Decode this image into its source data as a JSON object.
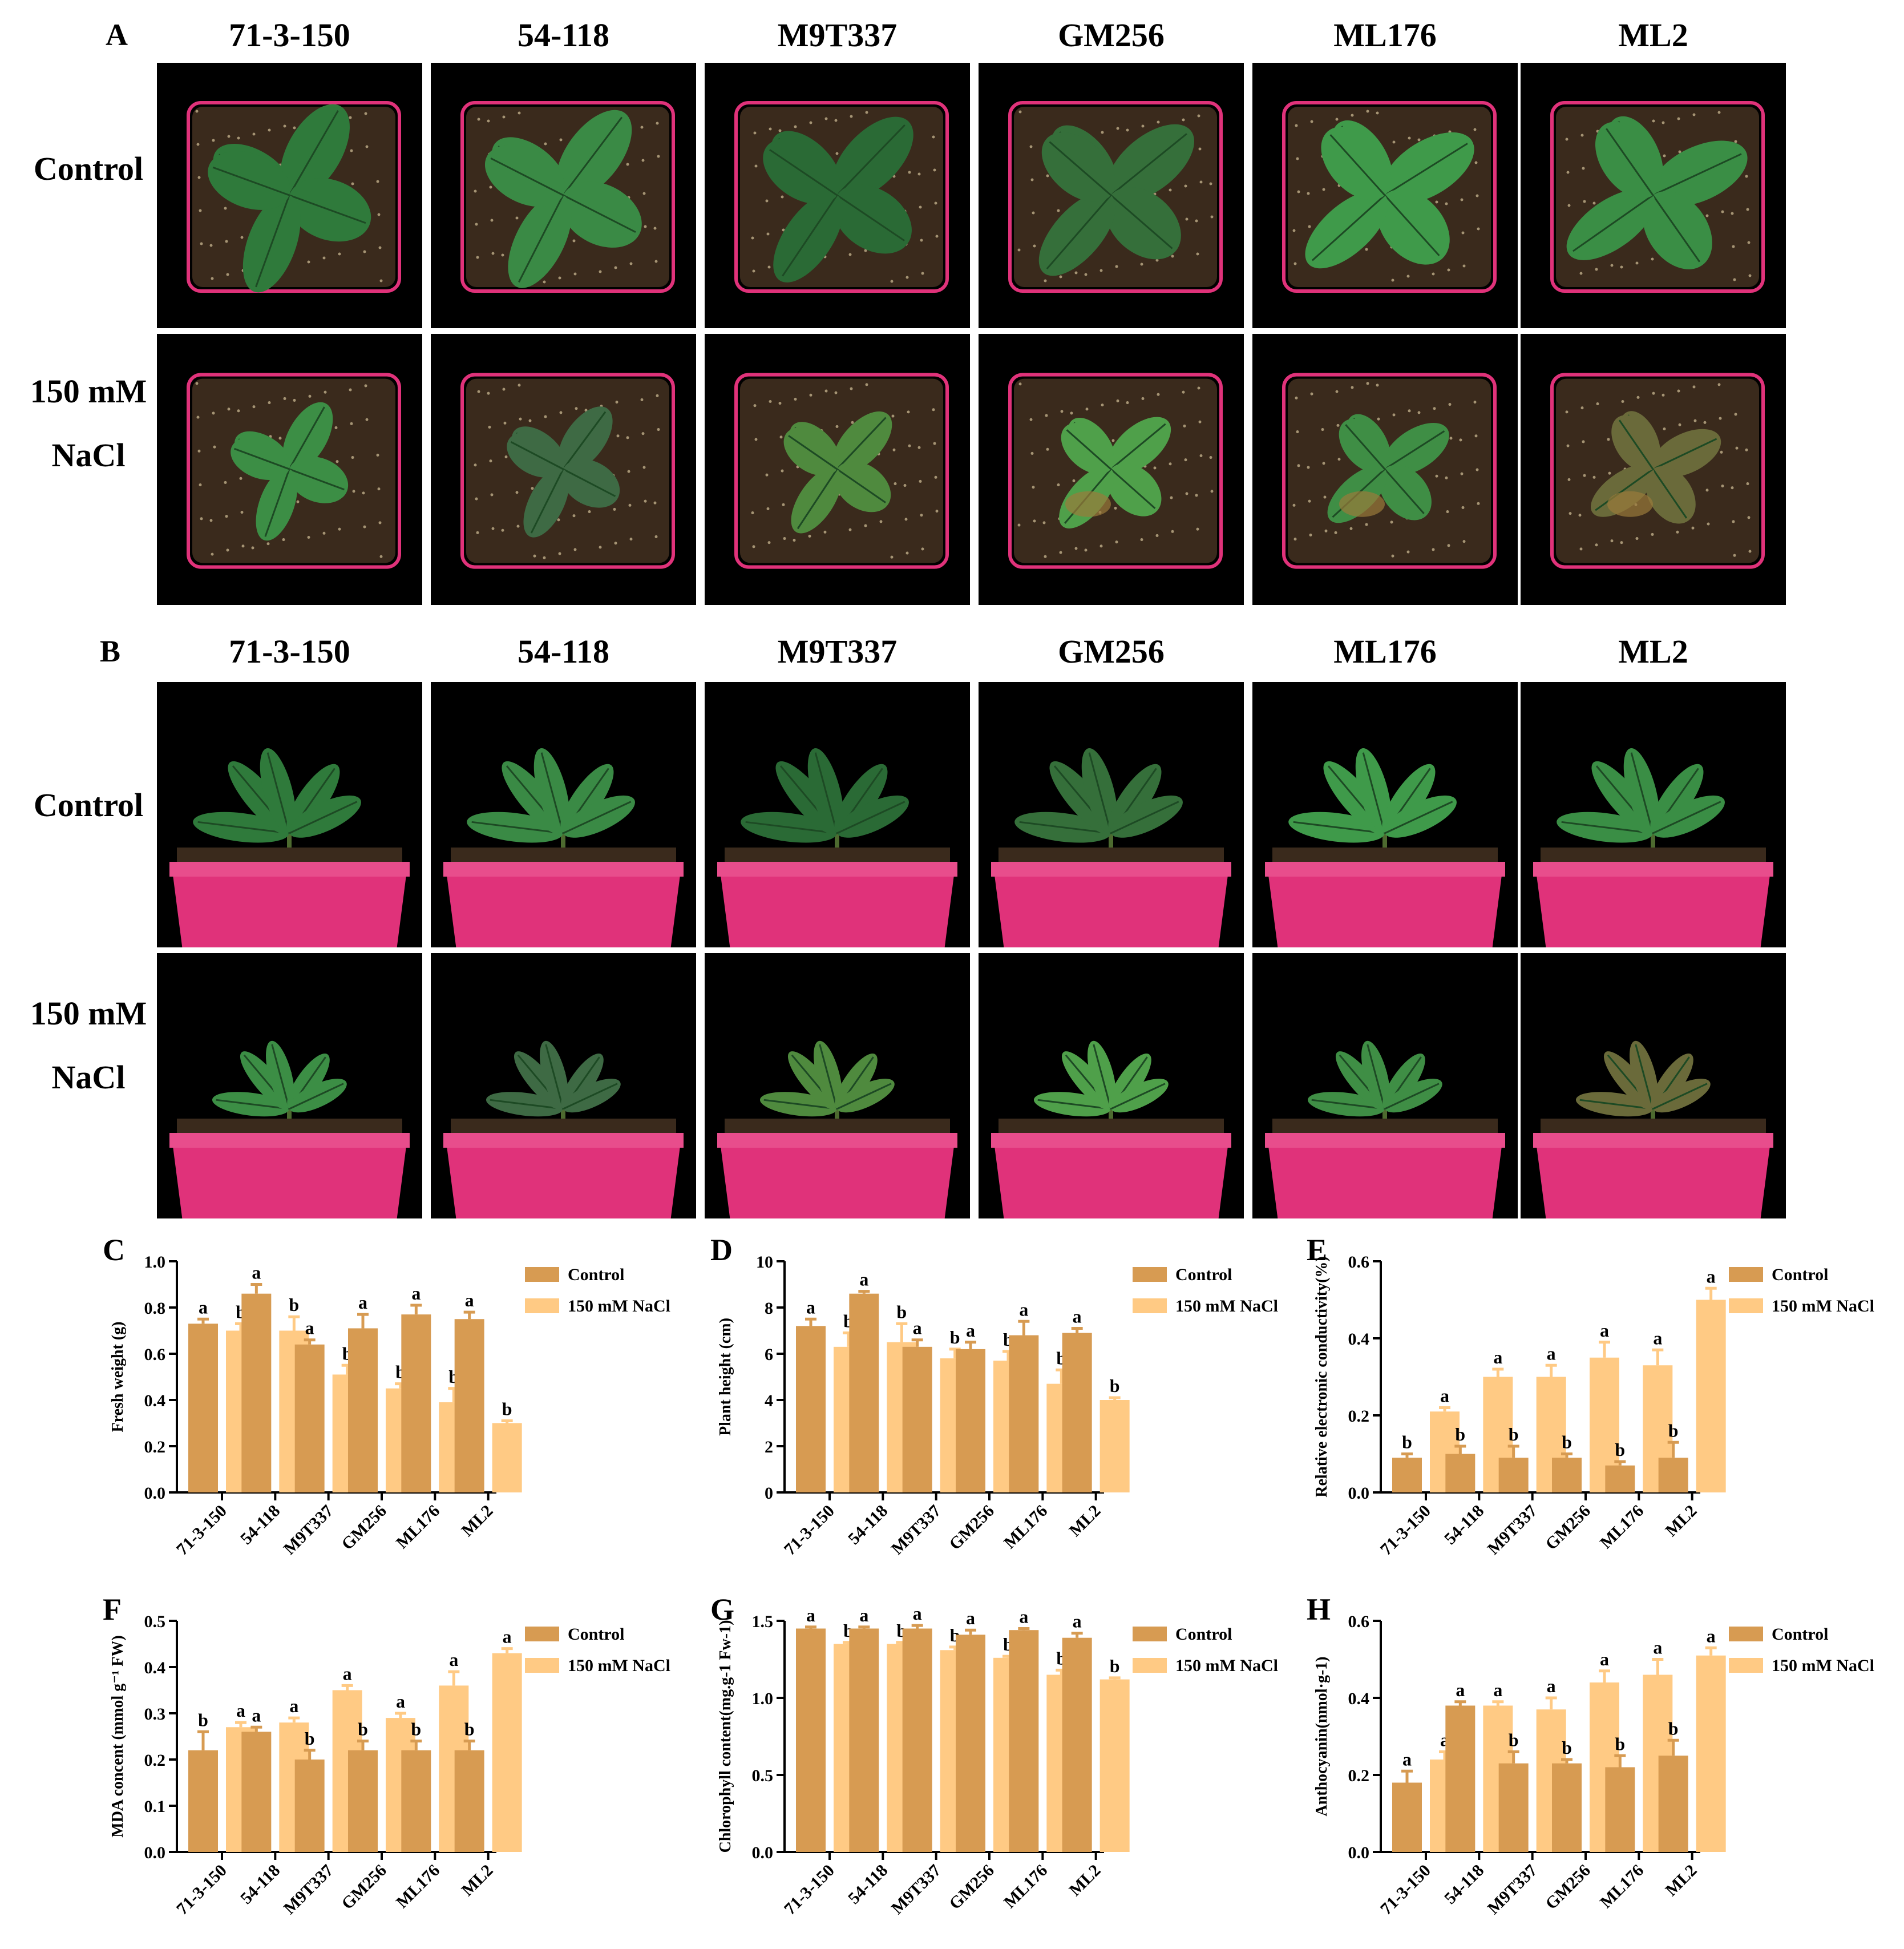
{
  "panel_a": {
    "letter": "A",
    "columns": [
      "71-3-150",
      "54-118",
      "M9T337",
      "GM256",
      "ML176",
      "ML2"
    ],
    "rows": [
      {
        "line1": "Control",
        "line2": ""
      },
      {
        "line1": "150 mM",
        "line2": "NaCl"
      }
    ]
  },
  "panel_b": {
    "letter": "B",
    "columns": [
      "71-3-150",
      "54-118",
      "M9T337",
      "GM256",
      "ML176",
      "ML2"
    ],
    "rows": [
      {
        "line1": "Control",
        "line2": ""
      },
      {
        "line1": "150 mM",
        "line2": "NaCl"
      }
    ]
  },
  "colors": {
    "control": "#D79B52",
    "nacl": "#FFCA84",
    "pot": "#E0327A",
    "soil": "#3A2A1C",
    "leaf": "#2F7A3B"
  },
  "chart_data": [
    {
      "id": "C",
      "type": "bar",
      "ylabel": "Fresh weight (g)",
      "ylim": [
        0,
        1.0
      ],
      "yticks": [
        "0.0",
        "0.2",
        "0.4",
        "0.6",
        "0.8",
        "1.0"
      ],
      "categories": [
        "71-3-150",
        "54-118",
        "M9T337",
        "GM256",
        "ML176",
        "ML2"
      ],
      "series": [
        {
          "name": "Control",
          "values": [
            0.73,
            0.86,
            0.64,
            0.71,
            0.77,
            0.75
          ],
          "errors": [
            0.02,
            0.04,
            0.02,
            0.06,
            0.04,
            0.03
          ],
          "letters": [
            "a",
            "a",
            "a",
            "a",
            "a",
            "a"
          ]
        },
        {
          "name": "150 mM NaCl",
          "values": [
            0.7,
            0.7,
            0.51,
            0.45,
            0.39,
            0.3
          ],
          "errors": [
            0.03,
            0.06,
            0.04,
            0.02,
            0.06,
            0.01
          ],
          "letters": [
            "b",
            "b",
            "b",
            "b",
            "b",
            "b"
          ]
        }
      ],
      "legend": "top-right"
    },
    {
      "id": "D",
      "type": "bar",
      "ylabel": "Plant height (cm)",
      "ylim": [
        0,
        10
      ],
      "yticks": [
        "0",
        "2",
        "4",
        "6",
        "8",
        "10"
      ],
      "categories": [
        "71-3-150",
        "54-118",
        "M9T337",
        "GM256",
        "ML176",
        "ML2"
      ],
      "series": [
        {
          "name": "Control",
          "values": [
            7.2,
            8.6,
            6.3,
            6.2,
            6.8,
            6.9
          ],
          "errors": [
            0.3,
            0.1,
            0.3,
            0.3,
            0.6,
            0.2
          ],
          "letters": [
            "a",
            "a",
            "a",
            "a",
            "a",
            "a"
          ]
        },
        {
          "name": "150 mM NaCl",
          "values": [
            6.3,
            6.5,
            5.8,
            5.7,
            4.7,
            4.0
          ],
          "errors": [
            0.6,
            0.8,
            0.4,
            0.4,
            0.6,
            0.1
          ],
          "letters": [
            "b",
            "b",
            "b",
            "b",
            "b",
            "b"
          ]
        }
      ],
      "legend": "top-right"
    },
    {
      "id": "E",
      "type": "bar",
      "ylabel": "Relative electronic conductivity(%)",
      "ylim": [
        0,
        0.6
      ],
      "yticks": [
        "0.0",
        "0.2",
        "0.4",
        "0.6"
      ],
      "categories": [
        "71-3-150",
        "54-118",
        "M9T337",
        "GM256",
        "ML176",
        "ML2"
      ],
      "series": [
        {
          "name": "Control",
          "values": [
            0.09,
            0.1,
            0.09,
            0.09,
            0.07,
            0.09
          ],
          "errors": [
            0.01,
            0.02,
            0.03,
            0.01,
            0.01,
            0.04
          ],
          "letters": [
            "b",
            "b",
            "b",
            "b",
            "b",
            "b"
          ]
        },
        {
          "name": "150 mM NaCl",
          "values": [
            0.21,
            0.3,
            0.3,
            0.35,
            0.33,
            0.5
          ],
          "errors": [
            0.01,
            0.02,
            0.03,
            0.04,
            0.04,
            0.03
          ],
          "letters": [
            "a",
            "a",
            "a",
            "a",
            "a",
            "a"
          ]
        }
      ],
      "legend": "top-right"
    },
    {
      "id": "F",
      "type": "bar",
      "ylabel": "MDA concent (mmol g⁻¹ FW)",
      "ylim": [
        0,
        0.5
      ],
      "yticks": [
        "0.0",
        "0.1",
        "0.2",
        "0.3",
        "0.4",
        "0.5"
      ],
      "categories": [
        "71-3-150",
        "54-118",
        "M9T337",
        "GM256",
        "ML176",
        "ML2"
      ],
      "series": [
        {
          "name": "Control",
          "values": [
            0.22,
            0.26,
            0.2,
            0.22,
            0.22,
            0.22
          ],
          "errors": [
            0.04,
            0.01,
            0.02,
            0.02,
            0.02,
            0.02
          ],
          "letters": [
            "b",
            "a",
            "b",
            "b",
            "b",
            "b"
          ]
        },
        {
          "name": "150 mM NaCl",
          "values": [
            0.27,
            0.28,
            0.35,
            0.29,
            0.36,
            0.43
          ],
          "errors": [
            0.01,
            0.01,
            0.01,
            0.01,
            0.03,
            0.01
          ],
          "letters": [
            "a",
            "a",
            "a",
            "a",
            "a",
            "a"
          ]
        }
      ],
      "legend": "top-right"
    },
    {
      "id": "G",
      "type": "bar",
      "ylabel": "Chlorophyll content(mg.g-1 Fw-1)",
      "ylim": [
        0,
        1.5
      ],
      "yticks": [
        "0.0",
        "0.5",
        "1.0",
        "1.5"
      ],
      "categories": [
        "71-3-150",
        "54-118",
        "M9T337",
        "GM256",
        "ML176",
        "ML2"
      ],
      "series": [
        {
          "name": "Control",
          "values": [
            1.45,
            1.45,
            1.45,
            1.41,
            1.44,
            1.39
          ],
          "errors": [
            0.01,
            0.01,
            0.02,
            0.03,
            0.01,
            0.03
          ],
          "letters": [
            "a",
            "a",
            "a",
            "a",
            "a",
            "a"
          ]
        },
        {
          "name": "150 mM NaCl",
          "values": [
            1.35,
            1.35,
            1.31,
            1.26,
            1.15,
            1.12
          ],
          "errors": [
            0.01,
            0.01,
            0.02,
            0.01,
            0.03,
            0.01
          ],
          "letters": [
            "b",
            "b",
            "b",
            "b",
            "b",
            "b"
          ]
        }
      ],
      "legend": "top-right"
    },
    {
      "id": "H",
      "type": "bar",
      "ylabel": "Anthocyanin(nmol·g-1)",
      "ylim": [
        0,
        0.6
      ],
      "yticks": [
        "0.0",
        "0.2",
        "0.4",
        "0.6"
      ],
      "categories": [
        "71-3-150",
        "54-118",
        "M9T337",
        "GM256",
        "ML176",
        "ML2"
      ],
      "series": [
        {
          "name": "Control",
          "values": [
            0.18,
            0.38,
            0.23,
            0.23,
            0.22,
            0.25
          ],
          "errors": [
            0.03,
            0.01,
            0.03,
            0.01,
            0.03,
            0.04
          ],
          "letters": [
            "a",
            "a",
            "b",
            "b",
            "b",
            "b"
          ]
        },
        {
          "name": "150 mM NaCl",
          "values": [
            0.24,
            0.38,
            0.37,
            0.44,
            0.46,
            0.51
          ],
          "errors": [
            0.02,
            0.01,
            0.03,
            0.03,
            0.04,
            0.02
          ],
          "letters": [
            "a",
            "a",
            "a",
            "a",
            "a",
            "a"
          ]
        }
      ],
      "legend": "top-right"
    }
  ]
}
